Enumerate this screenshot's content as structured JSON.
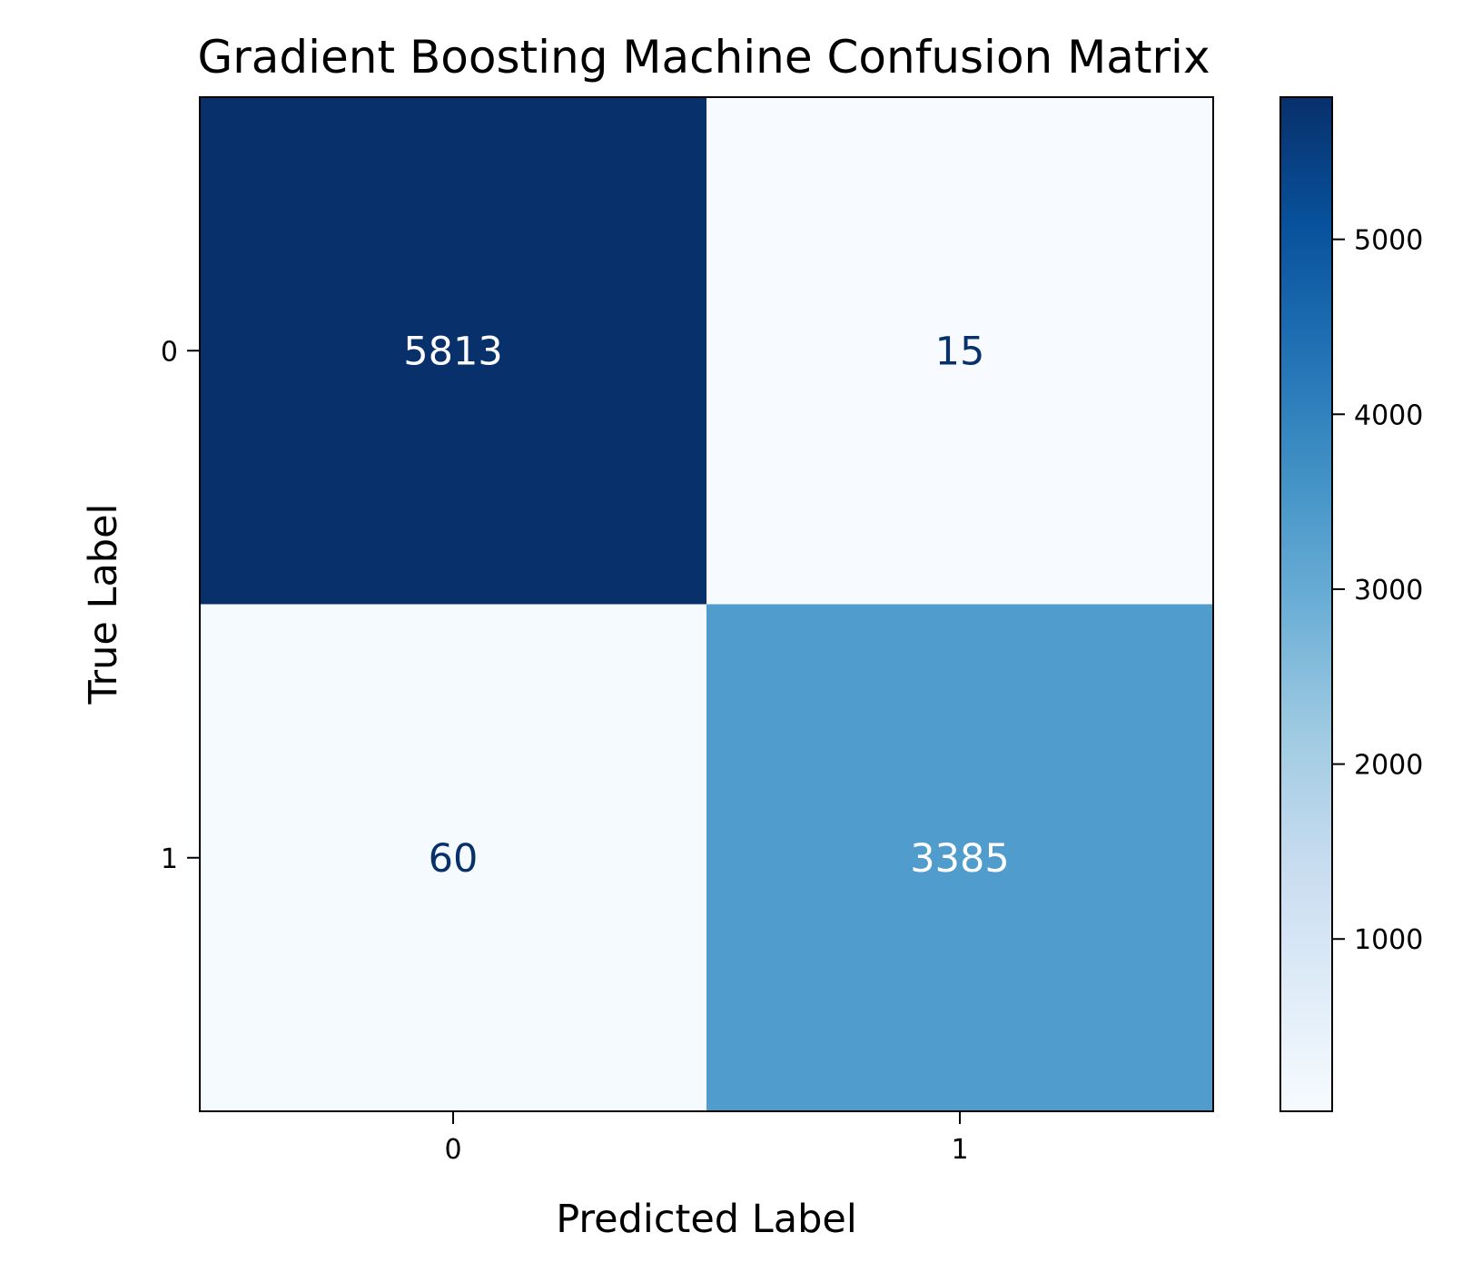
{
  "chart_data": {
    "type": "heatmap",
    "title": "Gradient Boosting Machine Confusion Matrix",
    "xlabel": "Predicted Label",
    "ylabel": "True Label",
    "x_categories": [
      "0",
      "1"
    ],
    "y_categories": [
      "0",
      "1"
    ],
    "matrix": [
      [
        5813,
        15
      ],
      [
        60,
        3385
      ]
    ],
    "colormap": "Blues",
    "colorbar": {
      "range": [
        15,
        5813
      ],
      "ticks": [
        1000,
        2000,
        3000,
        4000,
        5000
      ],
      "tick_labels": [
        "1000",
        "2000",
        "3000",
        "4000",
        "5000"
      ]
    }
  }
}
